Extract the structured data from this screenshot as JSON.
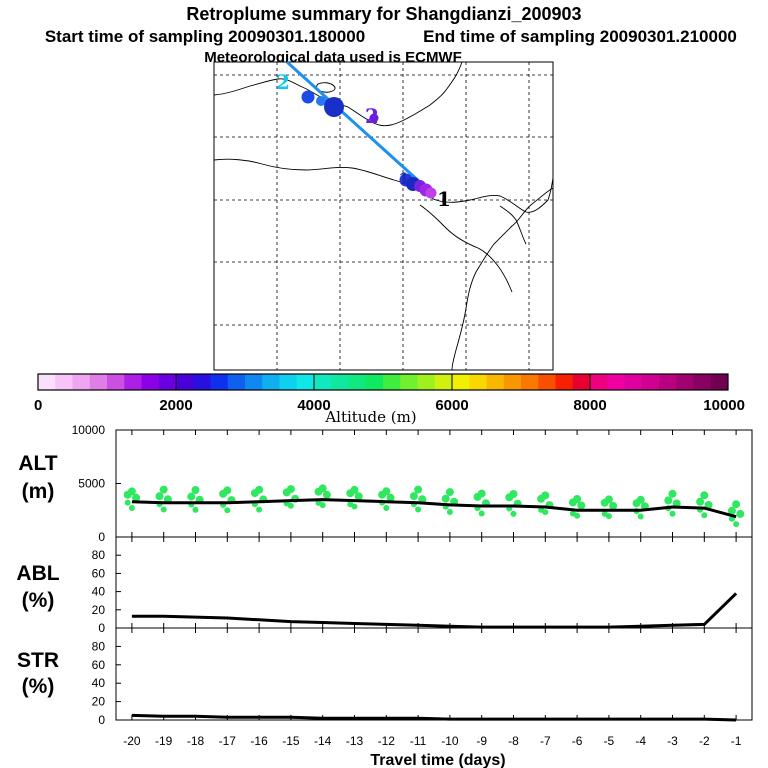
{
  "header": {
    "title": "Retroplume summary for Shangdianzi_200903",
    "start_label": "Start time of sampling 20090301.180000",
    "end_label": "End time of sampling 20090301.210000",
    "met_label": "Meteorological data used is ECMWF"
  },
  "map": {
    "track_color": "#1e90f0",
    "labels": [
      {
        "text": "2",
        "kind": "origin"
      },
      {
        "text": "2",
        "kind": "purple"
      },
      {
        "text": "1",
        "kind": "end"
      },
      {
        "text": "1",
        "kind": "cluster"
      }
    ]
  },
  "colorbar": {
    "label": "Altitude (m)",
    "ticks": [
      "0",
      "2000",
      "4000",
      "6000",
      "8000",
      "10000"
    ],
    "colors": [
      "#fbe0fb",
      "#f6c4f6",
      "#efa6f0",
      "#e07ee8",
      "#cc4fe3",
      "#ad1fe6",
      "#8c00e6",
      "#6a00e0",
      "#4a00d8",
      "#2a10e0",
      "#1030f0",
      "#1060f0",
      "#1088f0",
      "#10b0f0",
      "#10d0f0",
      "#10e8e8",
      "#10e8c0",
      "#10e8a0",
      "#10e880",
      "#10e860",
      "#40ec40",
      "#70f030",
      "#a0f020",
      "#d0f010",
      "#f0f000",
      "#f8d800",
      "#f8b800",
      "#f89800",
      "#f87800",
      "#f85000",
      "#f82000",
      "#e80030",
      "#f00080",
      "#f000a0",
      "#e000a0",
      "#d00090",
      "#b80080",
      "#a00070",
      "#880060",
      "#700050"
    ]
  },
  "chart_data": [
    {
      "type": "scatter",
      "name": "ALT",
      "ylabel": [
        "ALT",
        "(m)"
      ],
      "ylim": [
        0,
        10000
      ],
      "yticks": [
        "10000",
        "5000",
        "0"
      ],
      "x": [
        -1,
        -2,
        -3,
        -4,
        -5,
        -6,
        -7,
        -8,
        -9,
        -10,
        -11,
        -12,
        -13,
        -14,
        -15,
        -16,
        -17,
        -18,
        -19,
        -20
      ],
      "median_line": [
        1900,
        2700,
        2800,
        2500,
        2500,
        2500,
        2800,
        2900,
        2900,
        3000,
        3200,
        3300,
        3400,
        3500,
        3400,
        3300,
        3200,
        3200,
        3200,
        3300
      ],
      "point_color": "#30e860",
      "line_color": "#000000"
    },
    {
      "type": "line",
      "name": "ABL",
      "ylabel": [
        "ABL",
        "(%)"
      ],
      "ylim": [
        0,
        100
      ],
      "yticks": [
        "80",
        "60",
        "40",
        "20",
        "0"
      ],
      "x": [
        -20,
        -19,
        -18,
        -17,
        -16,
        -15,
        -14,
        -13,
        -12,
        -11,
        -10,
        -9,
        -8,
        -7,
        -6,
        -5,
        -4,
        -3,
        -2,
        -1
      ],
      "values": [
        13,
        13,
        12,
        11,
        9,
        7,
        6,
        5,
        4,
        3,
        2,
        1,
        1,
        1,
        1,
        1,
        2,
        3,
        4,
        38
      ]
    },
    {
      "type": "line",
      "name": "STR",
      "ylabel": [
        "STR",
        "(%)"
      ],
      "ylim": [
        0,
        100
      ],
      "yticks": [
        "80",
        "60",
        "40",
        "20",
        "0"
      ],
      "xlabel": "Travel time (days)",
      "xticks": [
        "-20",
        "-19",
        "-18",
        "-17",
        "-16",
        "-15",
        "-14",
        "-13",
        "-12",
        "-11",
        "-10",
        "-9",
        "-8",
        "-7",
        "-6",
        "-5",
        "-4",
        "-3",
        "-2",
        "-1"
      ],
      "x": [
        -20,
        -19,
        -18,
        -17,
        -16,
        -15,
        -14,
        -13,
        -12,
        -11,
        -10,
        -9,
        -8,
        -7,
        -6,
        -5,
        -4,
        -3,
        -2,
        -1
      ],
      "values": [
        5,
        4,
        4,
        3,
        3,
        3,
        2,
        2,
        2,
        2,
        1,
        1,
        1,
        1,
        1,
        1,
        1,
        1,
        1,
        0
      ]
    }
  ]
}
